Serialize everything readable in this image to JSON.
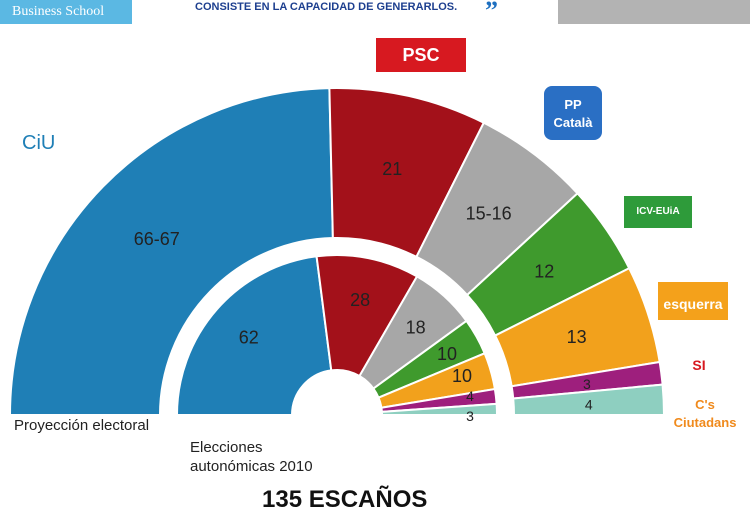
{
  "header": {
    "brand": "Business School",
    "quote": "CONSISTE EN LA CAPACIDAD DE GENERARLOS.",
    "quote_mark": "”"
  },
  "chart_data": {
    "type": "pie",
    "subtype": "semicircle-parliament",
    "title": "",
    "footer": "135 ESCAÑOS",
    "parties": [
      {
        "logo": "CiU",
        "color": "#1f7fb6"
      },
      {
        "logo": "PSC",
        "color": "#a3111a"
      },
      {
        "logo": "PP Català",
        "color": "#a7a7a7"
      },
      {
        "logo": "ICV-EUiA",
        "color": "#3f9a2d"
      },
      {
        "logo": "esquerra",
        "color": "#f2a11c"
      },
      {
        "logo": "SI",
        "color": "#9e1f7d"
      },
      {
        "logo": "C's Ciutadans",
        "color": "#8ecfc0"
      }
    ],
    "series": [
      {
        "name": "Proyección electoral",
        "ring": "outer",
        "labels": [
          "66-67",
          "21",
          "15-16",
          "12",
          "13",
          "3",
          "4"
        ],
        "values": [
          66.5,
          21,
          15.5,
          12,
          13,
          3,
          4
        ]
      },
      {
        "name": "Elecciones autonómicas 2010",
        "ring": "inner",
        "labels": [
          "62",
          "28",
          "18",
          "10",
          "10",
          "4",
          "3"
        ],
        "values": [
          62,
          28,
          18,
          10,
          10,
          4,
          3
        ]
      }
    ]
  }
}
